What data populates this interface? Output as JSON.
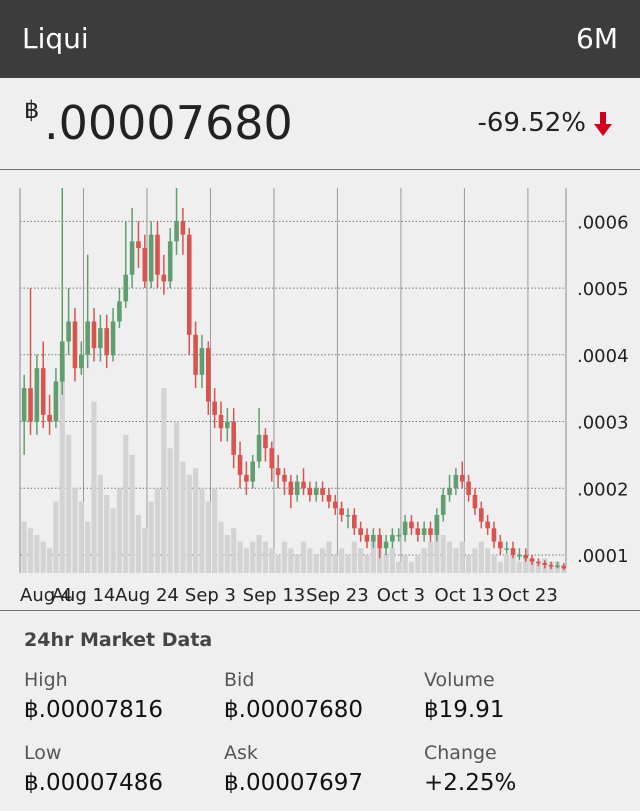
{
  "header": {
    "title": "Liqui",
    "range": "6M"
  },
  "price": {
    "currency": "฿",
    "value": ".00007680",
    "change": "-69.52%"
  },
  "chart_data": {
    "type": "candlestick",
    "categories": [
      "Aug 4",
      null,
      null,
      null,
      null,
      null,
      null,
      null,
      null,
      null,
      "Aug 14",
      null,
      null,
      null,
      null,
      null,
      null,
      null,
      null,
      null,
      "Aug 24",
      null,
      null,
      null,
      null,
      null,
      null,
      null,
      null,
      null,
      "Sep 3",
      null,
      null,
      null,
      null,
      null,
      null,
      null,
      null,
      null,
      "Sep 13",
      null,
      null,
      null,
      null,
      null,
      null,
      null,
      null,
      null,
      "Sep 23",
      null,
      null,
      null,
      null,
      null,
      null,
      null,
      null,
      null,
      "Oct 3",
      null,
      null,
      null,
      null,
      null,
      null,
      null,
      null,
      null,
      "Oct 13",
      null,
      null,
      null,
      null,
      null,
      null,
      null,
      null,
      null,
      "Oct 23",
      null,
      null,
      null,
      null,
      null
    ],
    "open": [
      0.0003,
      0.00035,
      0.0003,
      0.00038,
      0.00031,
      0.0003,
      0.00036,
      0.00042,
      0.00045,
      0.00038,
      0.0004,
      0.00045,
      0.00041,
      0.00044,
      0.0004,
      0.00045,
      0.00048,
      0.00052,
      0.00057,
      0.00056,
      0.00051,
      0.00058,
      0.00052,
      0.00051,
      0.00057,
      0.0006,
      0.00058,
      0.00043,
      0.00037,
      0.00041,
      0.00033,
      0.00031,
      0.00029,
      0.0003,
      0.00025,
      0.00022,
      0.00021,
      0.00024,
      0.00028,
      0.00026,
      0.00023,
      0.00022,
      0.00021,
      0.00019,
      0.00021,
      0.0002,
      0.00019,
      0.0002,
      0.00019,
      0.00018,
      0.00017,
      0.00016,
      0.00016,
      0.00014,
      0.00013,
      0.00012,
      0.00013,
      0.00011,
      0.00012,
      0.00013,
      0.00013,
      0.00015,
      0.00014,
      0.00013,
      0.00014,
      0.00013,
      0.00016,
      0.00019,
      0.0002,
      0.00022,
      0.00021,
      0.00019,
      0.00017,
      0.00015,
      0.00014,
      0.00012,
      0.00011,
      0.00011,
      0.0001,
      0.0001,
      9.5e-05,
      9e-05,
      8.8e-05,
      8.5e-05,
      8.3e-05,
      8.4e-05
    ],
    "high": [
      0.00037,
      0.0005,
      0.0004,
      0.00042,
      0.00034,
      0.00038,
      0.00065,
      0.0005,
      0.00047,
      0.00042,
      0.00055,
      0.00047,
      0.00046,
      0.00046,
      0.00047,
      0.0005,
      0.0006,
      0.00062,
      0.0006,
      0.00058,
      0.0006,
      0.0006,
      0.00055,
      0.00059,
      0.00065,
      0.00062,
      0.00059,
      0.00045,
      0.00043,
      0.00042,
      0.00035,
      0.00033,
      0.00032,
      0.00032,
      0.00027,
      0.00024,
      0.00025,
      0.00032,
      0.00029,
      0.00027,
      0.00025,
      0.00023,
      0.00022,
      0.00022,
      0.00023,
      0.00021,
      0.00021,
      0.00021,
      0.0002,
      0.00019,
      0.00018,
      0.00017,
      0.00017,
      0.00015,
      0.00014,
      0.00014,
      0.00014,
      0.00013,
      0.00014,
      0.00014,
      0.00016,
      0.00016,
      0.00015,
      0.00015,
      0.00015,
      0.00017,
      0.0002,
      0.00022,
      0.00023,
      0.00024,
      0.00022,
      0.0002,
      0.00018,
      0.00016,
      0.00015,
      0.00013,
      0.00012,
      0.00012,
      0.00011,
      0.00011,
      0.0001,
      9.5e-05,
      9.2e-05,
      9e-05,
      9e-05,
      8.8e-05
    ],
    "low": [
      0.00025,
      0.00028,
      0.00028,
      0.00029,
      0.00028,
      0.00029,
      0.00034,
      0.0004,
      0.00036,
      0.00037,
      0.00038,
      0.00039,
      0.00039,
      0.00038,
      0.00039,
      0.00044,
      0.00047,
      0.0005,
      0.00053,
      0.0005,
      0.0005,
      0.0005,
      0.00049,
      0.0005,
      0.00055,
      0.00055,
      0.0004,
      0.00035,
      0.00035,
      0.00031,
      0.00029,
      0.00027,
      0.00027,
      0.00023,
      0.0002,
      0.00019,
      0.0002,
      0.00023,
      0.00024,
      0.00021,
      0.0002,
      0.00019,
      0.00017,
      0.00018,
      0.00019,
      0.00018,
      0.00018,
      0.00018,
      0.00017,
      0.00016,
      0.00015,
      0.00014,
      0.00013,
      0.00012,
      0.00011,
      0.00011,
      9.5e-05,
      0.0001,
      0.00011,
      0.00012,
      0.00012,
      0.00013,
      0.00012,
      0.00012,
      0.00012,
      0.00012,
      0.00015,
      0.00018,
      0.00019,
      0.0002,
      0.00018,
      0.00016,
      0.00014,
      0.00013,
      0.00011,
      0.0001,
      0.000102,
      9.5e-05,
      9.2e-05,
      9e-05,
      8.5e-05,
      8.3e-05,
      8e-05,
      7.9e-05,
      8e-05,
      7.7e-05
    ],
    "close": [
      0.00035,
      0.0003,
      0.00038,
      0.00031,
      0.0003,
      0.00036,
      0.00042,
      0.00045,
      0.00038,
      0.0004,
      0.00045,
      0.00041,
      0.00044,
      0.0004,
      0.00045,
      0.00048,
      0.00052,
      0.00057,
      0.00056,
      0.00051,
      0.00058,
      0.00052,
      0.00051,
      0.00057,
      0.0006,
      0.00058,
      0.00043,
      0.00037,
      0.00041,
      0.00033,
      0.00031,
      0.00029,
      0.0003,
      0.00025,
      0.00022,
      0.00021,
      0.00024,
      0.00028,
      0.00026,
      0.00023,
      0.00022,
      0.00021,
      0.00019,
      0.00021,
      0.0002,
      0.00019,
      0.0002,
      0.00019,
      0.00018,
      0.00017,
      0.00016,
      0.00016,
      0.00014,
      0.00013,
      0.00012,
      0.00013,
      0.00011,
      0.00012,
      0.00013,
      0.00013,
      0.00015,
      0.00014,
      0.00013,
      0.00014,
      0.00013,
      0.00016,
      0.00019,
      0.0002,
      0.00022,
      0.00021,
      0.00019,
      0.00017,
      0.00015,
      0.00014,
      0.00012,
      0.00011,
      0.00011,
      0.0001,
      0.0001,
      9.5e-05,
      9e-05,
      8.8e-05,
      8.5e-05,
      8.3e-05,
      8.4e-05,
      8e-05
    ],
    "volume": [
      0.00015,
      0.00014,
      0.00013,
      0.00012,
      0.00011,
      0.00018,
      0.0004,
      0.00028,
      0.0002,
      0.00018,
      0.00015,
      0.00033,
      0.00022,
      0.00019,
      0.00017,
      0.0002,
      0.00028,
      0.00025,
      0.00016,
      0.00014,
      0.00018,
      0.0002,
      0.00035,
      0.00026,
      0.0003,
      0.00024,
      0.00022,
      0.00023,
      0.0002,
      0.00018,
      0.0002,
      0.00015,
      0.00013,
      0.00014,
      0.00012,
      0.00011,
      0.00012,
      0.00013,
      0.00012,
      0.00011,
      0.0001,
      0.00012,
      0.00011,
      0.0001,
      0.00012,
      0.00011,
      0.0001,
      0.00011,
      0.00012,
      0.0001,
      0.00011,
      0.0001,
      0.00012,
      0.00011,
      0.0001,
      0.00012,
      0.00011,
      0.0001,
      0.00011,
      9e-05,
      0.0001,
      9e-05,
      0.0001,
      0.00011,
      0.00012,
      0.00016,
      0.00013,
      0.00012,
      0.00011,
      0.00012,
      0.0001,
      0.00011,
      0.00012,
      0.00011,
      0.0001,
      9e-05,
      0.0001,
      0.00011,
      9e-05,
      0.0001,
      9.5e-05,
      9e-05,
      9.5e-05,
      9e-05,
      9e-05,
      8.5e-05
    ],
    "up_color": "#5f9e6e",
    "down_color": "#d9534f",
    "volume_color": "#d3d3d3",
    "ylim": [
      7.3e-05,
      0.00065
    ],
    "yticks": [
      {
        "value": 0.0001,
        "label": ".0001"
      },
      {
        "value": 0.0002,
        "label": ".0002"
      },
      {
        "value": 0.0003,
        "label": ".0003"
      },
      {
        "value": 0.0004,
        "label": ".0004"
      },
      {
        "value": 0.0005,
        "label": ".0005"
      },
      {
        "value": 0.0006,
        "label": ".0006"
      }
    ],
    "grid": true
  },
  "market_data": {
    "title": "24hr Market Data",
    "items": [
      {
        "label": "High",
        "value": "฿.00007816"
      },
      {
        "label": "Bid",
        "value": "฿.00007680"
      },
      {
        "label": "Volume",
        "value": "฿19.91"
      },
      {
        "label": "Low",
        "value": "฿.00007486"
      },
      {
        "label": "Ask",
        "value": "฿.00007697"
      },
      {
        "label": "Change",
        "value": "+2.25%"
      }
    ]
  }
}
